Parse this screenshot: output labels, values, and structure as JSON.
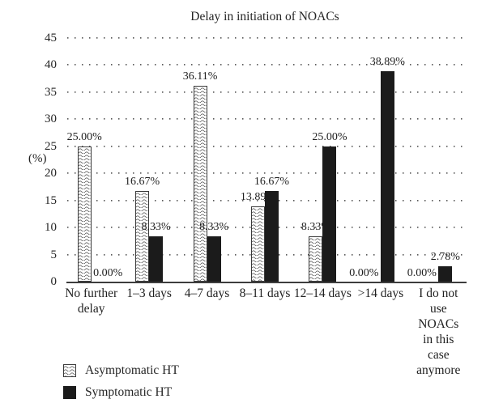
{
  "colors": {
    "bar_solid": "#1b1b1b",
    "pattern_stroke": "#5f5f5f",
    "axis_line": "#3d3d3d",
    "grid_dots": "#5a5a5a",
    "text": "#1f1f1f",
    "background": "#ffffff"
  },
  "chart_data": {
    "type": "bar",
    "title": "Delay in initiation of NOACs",
    "ylabel": "(%)",
    "xlabel": "",
    "ylim": [
      0,
      45
    ],
    "yticks": [
      0,
      5,
      10,
      15,
      20,
      25,
      30,
      35,
      40,
      45
    ],
    "grid": "dotted-horizontal",
    "legend_position": "bottom-left",
    "data_labels": true,
    "categories": [
      "No further delay",
      "1–3 days",
      "4–7 days",
      "8–11 days",
      "12–14 days",
      ">14 days",
      "I do not use NOACs in this case anymore"
    ],
    "category_display": [
      "No further\ndelay",
      "1–3 days",
      "4–7 days",
      "8–11 days",
      "12–14 days",
      ">14 days",
      "I do not\nuse NOACs\nin this case\nanymore"
    ],
    "series": [
      {
        "name": "Asymptomatic HT",
        "fill": "wave-pattern",
        "values": [
          25.0,
          16.67,
          36.11,
          13.89,
          8.33,
          0.0,
          0.0
        ],
        "labels": [
          "25.00%",
          "16.67%",
          "36.11%",
          "13.89%",
          "8.33%",
          "0.00%",
          "0.00%"
        ]
      },
      {
        "name": "Symptomatic HT",
        "fill": "solid-black",
        "values": [
          0.0,
          8.33,
          8.33,
          16.67,
          25.0,
          38.89,
          2.78
        ],
        "labels": [
          "0.00%",
          "8.33%",
          "8.33%",
          "16.67%",
          "25.00%",
          "38.89%",
          "2.78%"
        ]
      }
    ]
  }
}
